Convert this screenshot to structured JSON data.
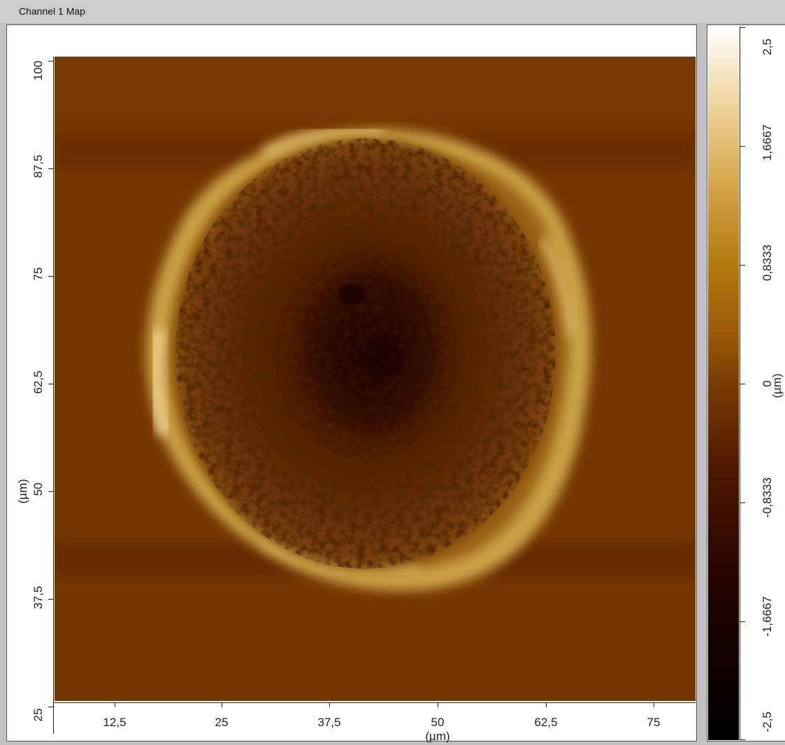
{
  "window": {
    "title": "Channel 1 Map"
  },
  "map": {
    "y_axis": {
      "label": "(µm)",
      "ticks": [
        "100",
        "87,5",
        "75",
        "62,5",
        "50",
        "37,5",
        "25"
      ]
    },
    "x_axis": {
      "label": "(µm)",
      "ticks": [
        "12,5",
        "25",
        "37,5",
        "50",
        "62,5",
        "75"
      ]
    }
  },
  "colorbar": {
    "label": "(µm)",
    "ticks": [
      "2,5",
      "1,6667",
      "0,8333",
      "0",
      "-0,8333",
      "-1,6667",
      "-2,5"
    ],
    "colors": [
      "#ffffff",
      "#d6a64a",
      "#9c5a08",
      "#7a3c02",
      "#4f1800",
      "#120000",
      "#000000"
    ]
  }
}
